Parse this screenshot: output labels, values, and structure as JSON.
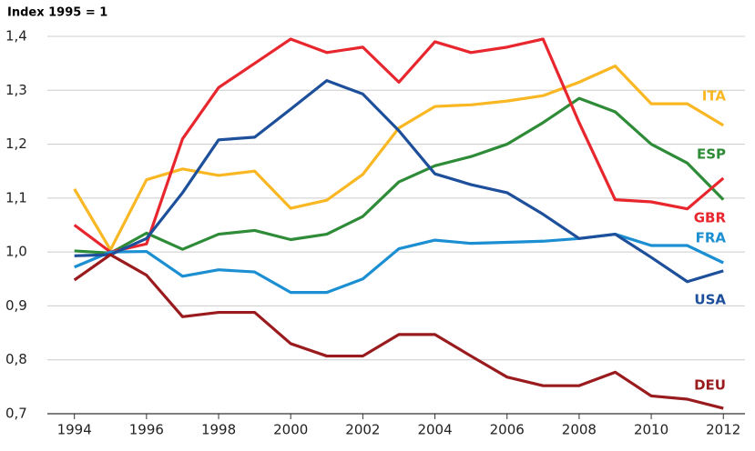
{
  "chart_data": {
    "type": "line",
    "y_label": "Index 1995 = 1",
    "x": [
      1994,
      1995,
      1996,
      1997,
      1998,
      1999,
      2000,
      2001,
      2002,
      2003,
      2004,
      2005,
      2006,
      2007,
      2008,
      2009,
      2010,
      2011,
      2012
    ],
    "series": [
      {
        "name": "ITA",
        "color": "#f9b823",
        "values": [
          1.117,
          1.004,
          1.134,
          1.154,
          1.142,
          1.15,
          1.081,
          1.096,
          1.144,
          1.23,
          1.27,
          1.273,
          1.28,
          1.29,
          1.315,
          1.345,
          1.275,
          1.275,
          1.235
        ]
      },
      {
        "name": "ESP",
        "color": "#2e8b37",
        "values": [
          1.002,
          0.998,
          1.035,
          1.005,
          1.033,
          1.04,
          1.023,
          1.033,
          1.066,
          1.13,
          1.16,
          1.177,
          1.2,
          1.24,
          1.285,
          1.26,
          1.2,
          1.165,
          1.097
        ]
      },
      {
        "name": "GBR",
        "color": "#e8262e",
        "values": [
          1.05,
          1.0,
          1.015,
          1.21,
          1.305,
          1.35,
          1.395,
          1.37,
          1.38,
          1.315,
          1.39,
          1.37,
          1.38,
          1.395,
          1.24,
          1.097,
          1.093,
          1.08,
          1.137
        ]
      },
      {
        "name": "FRA",
        "color": "#1b8fd2",
        "values": [
          0.972,
          1.0,
          1.001,
          0.955,
          0.967,
          0.963,
          0.925,
          0.925,
          0.95,
          1.006,
          1.022,
          1.016,
          1.018,
          1.02,
          1.025,
          1.033,
          1.012,
          1.012,
          0.98
        ]
      },
      {
        "name": "USA",
        "color": "#1d4f9b",
        "values": [
          0.993,
          0.995,
          1.025,
          1.11,
          1.208,
          1.213,
          1.265,
          1.318,
          1.293,
          1.225,
          1.145,
          1.125,
          1.11,
          1.07,
          1.025,
          1.033,
          0.99,
          0.945,
          0.965
        ]
      },
      {
        "name": "DEU",
        "color": "#9a1b1e",
        "values": [
          0.948,
          0.995,
          0.957,
          0.88,
          0.888,
          0.888,
          0.83,
          0.807,
          0.807,
          0.847,
          0.847,
          0.807,
          0.768,
          0.752,
          0.752,
          0.777,
          0.733,
          0.727,
          0.71
        ]
      }
    ],
    "xlim": [
      1993.25,
      2012.6
    ],
    "xticks": [
      1994,
      1996,
      1998,
      2000,
      2002,
      2004,
      2006,
      2008,
      2010,
      2012
    ],
    "ylim": [
      0.7,
      1.4
    ],
    "yticks": [
      {
        "value": 0.7,
        "label": "0,7"
      },
      {
        "value": 0.8,
        "label": "0,8"
      },
      {
        "value": 0.9,
        "label": "0,9"
      },
      {
        "value": 1.0,
        "label": "1,0"
      },
      {
        "value": 1.1,
        "label": "1,1"
      },
      {
        "value": 1.2,
        "label": "1,2"
      },
      {
        "value": 1.3,
        "label": "1,3"
      },
      {
        "value": 1.4,
        "label": "1,4"
      }
    ],
    "grid": true
  }
}
